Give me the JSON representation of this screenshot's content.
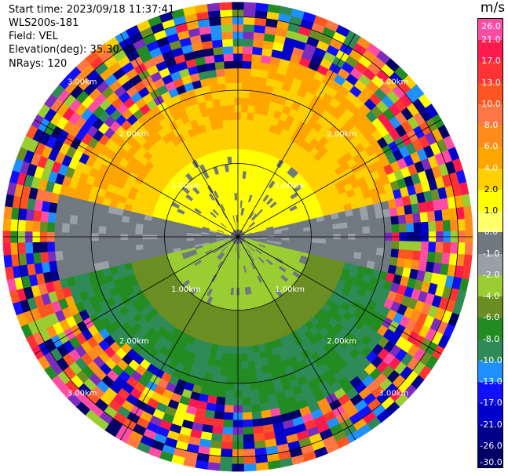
{
  "info": {
    "start_time": "Start time: 2023/09/18 11:37:41",
    "instrument": "WLS200s-181",
    "field": "Field: VEL",
    "elevation": "Elevation(deg): 35.30",
    "nrays": "NRays: 120"
  },
  "colorbar": {
    "unit": "m/s",
    "labels": [
      "26.0",
      "21.0",
      "17.0",
      "13.0",
      "10.0",
      "8.0",
      "6.0",
      "4.0",
      "2.0",
      "1.0",
      "0.0",
      "-1.0",
      "-2.0",
      "-4.0",
      "-6.0",
      "-8.0",
      "-10.0",
      "-13.0",
      "-17.0",
      "-21.0",
      "-26.0",
      "-30.0"
    ],
    "colors": [
      "#ff4da6",
      "#ff1a4d",
      "#ff3333",
      "#ff5522",
      "#ff7744",
      "#ff8c1a",
      "#ffa500",
      "#ffd000",
      "#ffff00",
      "#ffff66",
      "#707880",
      "#9aa0a8",
      "#9acd32",
      "#6b8e23",
      "#228b22",
      "#2e8b57",
      "#1e90ff",
      "#1010ff",
      "#0000cd",
      "#00008b",
      "#000066"
    ]
  },
  "chart_data": {
    "type": "heatmap",
    "projection": "PPI polar",
    "field": "VEL",
    "unit": "m/s",
    "range_rings_km": [
      1.0,
      2.0,
      3.0
    ],
    "ring_labels": [
      "1.00km",
      "2.00km",
      "3.00km"
    ],
    "n_rays": 120,
    "max_range_km": 3.2,
    "pattern": {
      "near_field_yellow_sector": "north (0 to 2 km, 1 to 6 m/s)",
      "near_field_gray_band": "east-west (0 m/s)",
      "near_field_green_sector": "south (-2 to -8 m/s)",
      "far_field": "noisy random values beyond ~2.3 km"
    },
    "grid": true
  }
}
